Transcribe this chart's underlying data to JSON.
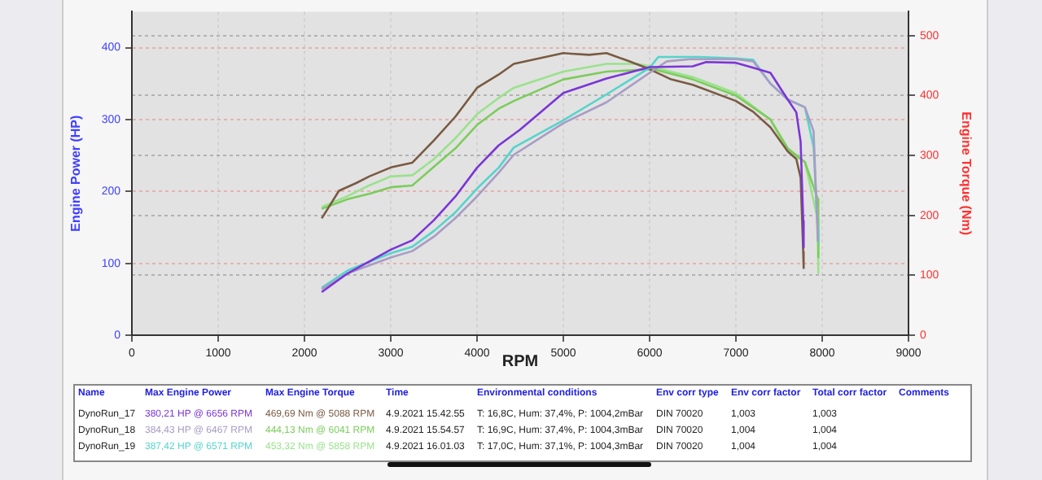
{
  "chart_data": {
    "type": "line",
    "xlabel": "RPM",
    "ylabel": "Engine Power (HP)",
    "y2label": "Engine Torque (Nm)",
    "xlim": [
      0,
      9000
    ],
    "xticks": [
      0,
      1000,
      2000,
      3000,
      4000,
      5000,
      6000,
      7000,
      8000,
      9000
    ],
    "ylim": [
      0,
      450
    ],
    "yticks": [
      0,
      100,
      200,
      300,
      400
    ],
    "y2lim": [
      0,
      540
    ],
    "y2ticks": [
      0,
      100,
      200,
      300,
      400,
      500
    ],
    "grid": true,
    "marker": "none",
    "line_style": "solid",
    "series": [
      {
        "color": "#7b35d6",
        "x": [
          2200,
          2500,
          3000,
          3250,
          3500,
          3750,
          4000,
          4250,
          4500,
          5000,
          5500,
          6000,
          6500,
          6656,
          7000,
          7200,
          7400,
          7600,
          7700,
          7750,
          7780,
          7785
        ],
        "values": [
          60,
          86,
          119,
          132,
          160,
          193,
          233,
          264,
          286,
          337,
          357,
          373,
          374,
          380,
          379,
          372,
          365,
          328,
          310,
          269,
          159,
          122
        ]
      },
      {
        "color": "#a89cc4",
        "x": [
          2200,
          2500,
          3000,
          3250,
          3500,
          3750,
          4000,
          4250,
          4426,
          5000,
          5500,
          6000,
          6200,
          6467,
          7000,
          7200,
          7400,
          7600,
          7800,
          7900,
          7950
        ],
        "values": [
          64,
          86,
          108,
          117,
          137,
          163,
          193,
          226,
          251,
          295,
          324,
          365,
          381,
          384,
          384,
          381,
          350,
          328,
          317,
          284,
          130
        ]
      },
      {
        "color": "#55d4cc",
        "x": [
          2200,
          2500,
          3000,
          3250,
          3500,
          3750,
          4000,
          4250,
          4426,
          5000,
          5500,
          6000,
          6100,
          6571,
          7000,
          7200,
          7400,
          7600,
          7800,
          7900,
          7950,
          7955
        ],
        "values": [
          66,
          90,
          114,
          123,
          145,
          171,
          204,
          233,
          261,
          299,
          335,
          372,
          387,
          387,
          385,
          383,
          350,
          328,
          317,
          262,
          145,
          130
        ]
      },
      {
        "color": "#7a5a42",
        "axis": "y2",
        "x": [
          2200,
          2400,
          2600,
          2750,
          3000,
          3250,
          3500,
          3750,
          4000,
          4250,
          4426,
          5000,
          5088,
          5300,
          5500,
          5750,
          6000,
          6250,
          6500,
          7000,
          7200,
          7400,
          7600,
          7700,
          7750,
          7780,
          7785
        ],
        "values": [
          195,
          241,
          254,
          265,
          280,
          288,
          325,
          365,
          413,
          435,
          453,
          471,
          470,
          468,
          471,
          458,
          444,
          427,
          418,
          391,
          373,
          347,
          307,
          294,
          263,
          139,
          112
        ]
      },
      {
        "color": "#7ccc5c",
        "axis": "y2",
        "x": [
          2200,
          2500,
          2750,
          3000,
          3250,
          3500,
          3750,
          4000,
          4250,
          4426,
          5000,
          5500,
          6041,
          6500,
          7000,
          7400,
          7600,
          7800,
          7950,
          7955
        ],
        "values": [
          211,
          227,
          236,
          247,
          250,
          281,
          312,
          351,
          378,
          391,
          427,
          440,
          444,
          427,
          400,
          360,
          312,
          289,
          227,
          130
        ]
      },
      {
        "color": "#9ae28c",
        "axis": "y2",
        "x": [
          2200,
          2500,
          2750,
          3000,
          3250,
          3500,
          3750,
          4000,
          4250,
          4426,
          5000,
          5500,
          5858,
          6000,
          6500,
          7000,
          7400,
          7600,
          7800,
          7950,
          7955
        ],
        "values": [
          214,
          232,
          250,
          265,
          267,
          294,
          329,
          369,
          396,
          413,
          440,
          453,
          453,
          449,
          431,
          404,
          360,
          307,
          289,
          192,
          104
        ]
      }
    ],
    "annotations": [
      "Name",
      "Max Engine Power",
      "Max Engine Torque",
      "Time",
      "Environmental conditions",
      "Env corr type",
      "Env corr factor",
      "Total corr factor",
      "Comments",
      "DynoRun_17",
      "380,21 HP @ 6656 RPM",
      "469,69 Nm @ 5088 RPM",
      "4.9.2021 15.42.55",
      "T: 16,8C, Hum: 37,4%, P: 1004,2mBar",
      "DIN 70020",
      "1,003",
      "1,003",
      "DynoRun_18",
      "384,43 HP @ 6467 RPM",
      "444,13 Nm @ 6041 RPM",
      "4.9.2021 15.54.57",
      "T: 16,9C, Hum: 37,4%, P: 1004,3mBar",
      "DIN 70020",
      "1,004",
      "1,004",
      "DynoRun_19",
      "387,42 HP @ 6571 RPM",
      "453,32 Nm @ 5858 RPM",
      "4.9.2021 16.01.03",
      "T: 17,0C, Hum: 37,1%, P: 1004,3mBar",
      "DIN 70020",
      "1,004",
      "1,004"
    ]
  }
}
